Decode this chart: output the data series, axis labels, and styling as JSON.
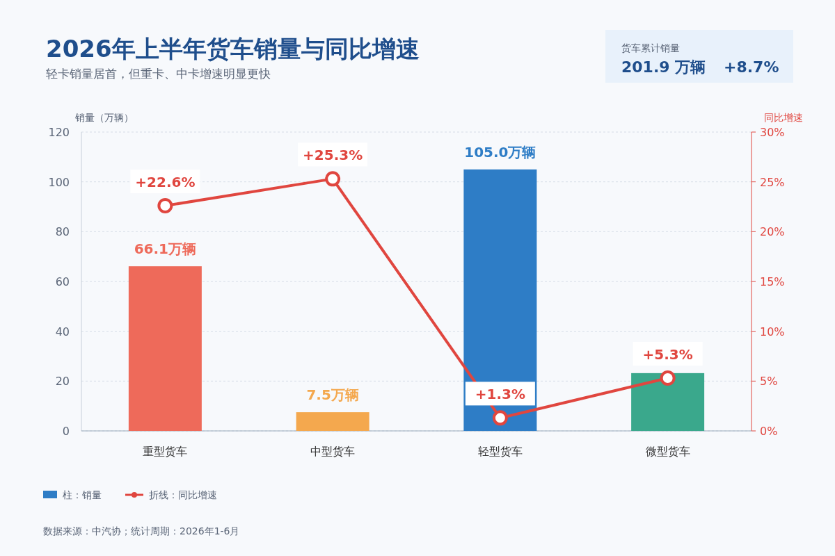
{
  "chart_data": {
    "type": "bar",
    "title": "2026年上半年货车销量与同比增速",
    "subtitle": "轻卡销量居首，但重卡、中卡增速明显更快",
    "categories": [
      "重型货车",
      "中型货车",
      "轻型货车",
      "微型货车"
    ],
    "ylabel": "销量（万辆）",
    "y2label": "同比增速",
    "ylim": [
      0,
      120
    ],
    "yticks": [
      0,
      20,
      40,
      60,
      80,
      100,
      120
    ],
    "y2lim": [
      0,
      30
    ],
    "y2ticks": [
      {
        "value": 0,
        "label": "0%"
      },
      {
        "value": 5,
        "label": "5%"
      },
      {
        "value": 10,
        "label": "10%"
      },
      {
        "value": 15,
        "label": "15%"
      },
      {
        "value": 20,
        "label": "20%"
      },
      {
        "value": 25,
        "label": "25%"
      },
      {
        "value": 30,
        "label": "30%"
      }
    ],
    "grid": "y",
    "legend": "bottom",
    "marker": "circle",
    "series": [
      {
        "name": "柱：销量",
        "color": "#2e7dc6",
        "colors": [
          "#ee6a5a",
          "#f4a84e",
          "#2e7dc6",
          "#3aa88c"
        ],
        "values": [
          66.1,
          7.5,
          105.0,
          23.2
        ],
        "value_labels": [
          "66.1万辆",
          "7.5万辆",
          "105.0万辆",
          null
        ]
      },
      {
        "name": "折线：同比增速",
        "type": "line",
        "axis": "y2",
        "color": "#e0463f",
        "values": [
          22.6,
          25.3,
          1.3,
          5.3
        ],
        "value_labels": [
          "+22.6%",
          "+25.3%",
          "+1.3%",
          "+5.3%"
        ]
      }
    ],
    "annotations": [
      "货车累计销量",
      "201.9 万辆",
      "+8.7%",
      "数据来源：中汽协；统计周期：2026年1-6月"
    ]
  }
}
